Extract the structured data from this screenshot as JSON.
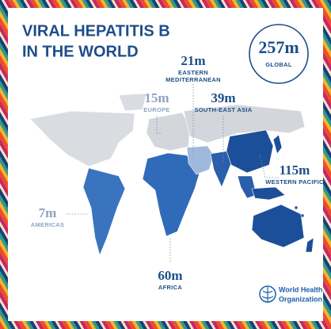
{
  "header": {
    "title_lines": [
      "VIRAL HEPATITIS B",
      "IN THE WORLD"
    ]
  },
  "global": {
    "value": "257m",
    "label": "GLOBAL"
  },
  "regions": [
    {
      "value": "21m",
      "name_lines": [
        "EASTERN",
        "MEDITERRANEAN"
      ]
    },
    {
      "value": "15m",
      "name_lines": [
        "EUROPE"
      ]
    },
    {
      "value": "39m",
      "name_lines": [
        "SOUTH-EAST ASIA"
      ]
    },
    {
      "value": "115m",
      "name_lines": [
        "WESTERN PACIFIC"
      ]
    },
    {
      "value": "7m",
      "name_lines": [
        "AMERICAS"
      ]
    },
    {
      "value": "60m",
      "name_lines": [
        "AFRICA"
      ]
    }
  ],
  "logo": {
    "lines": [
      "World Health",
      "Organization"
    ]
  }
}
